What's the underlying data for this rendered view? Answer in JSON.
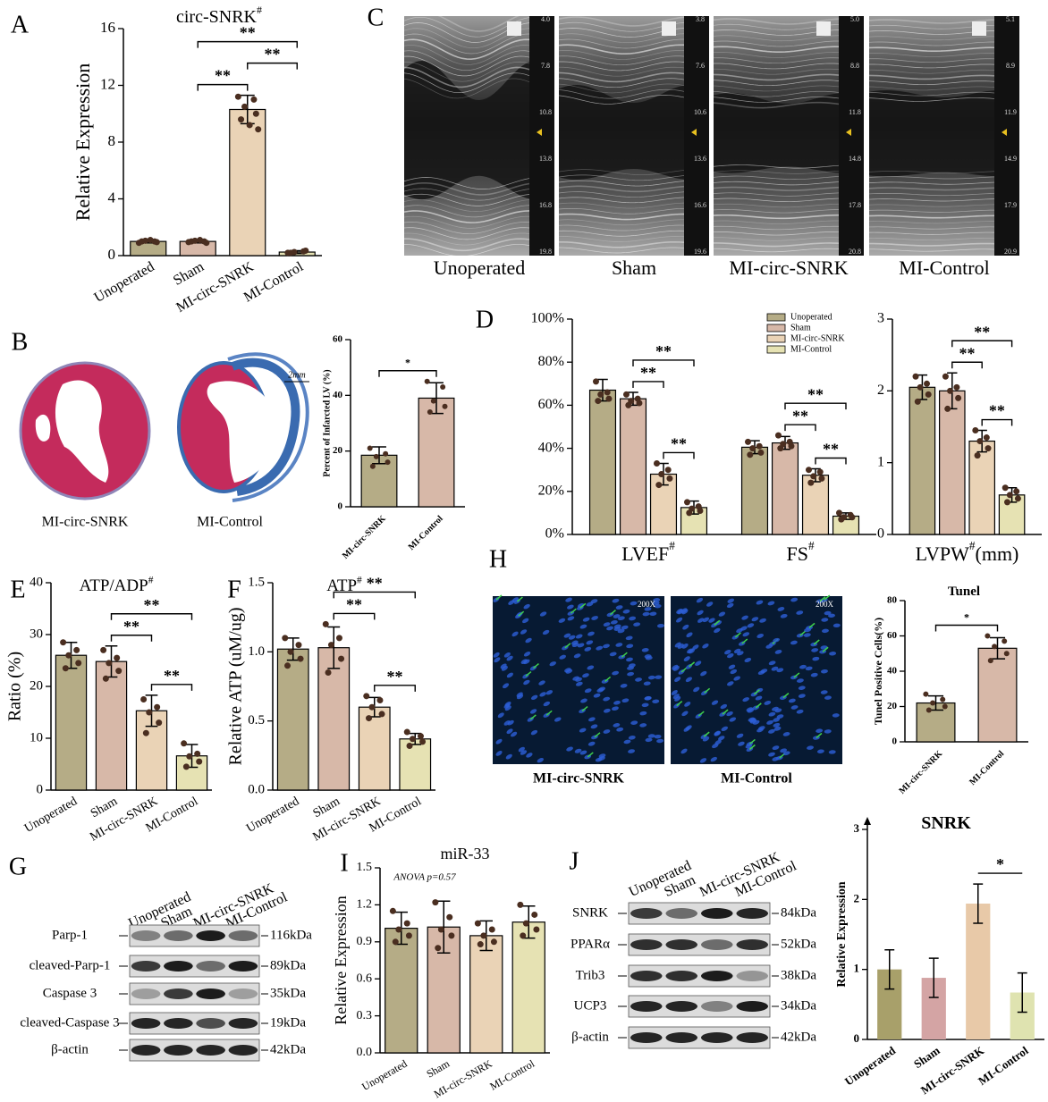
{
  "panels": [
    "A",
    "B",
    "C",
    "D",
    "E",
    "F",
    "G",
    "H",
    "I",
    "J"
  ],
  "histology": {
    "captions": [
      "MI-circ-SNRK",
      "MI-Control"
    ],
    "scale": "2mm"
  },
  "echo": {
    "images": [
      {
        "label": "Unoperated",
        "scale": [
          "4.0",
          "7.8",
          "10.8",
          "13.8",
          "16.8",
          "19.8"
        ]
      },
      {
        "label": "Sham",
        "scale": [
          "3.8",
          "7.6",
          "10.6",
          "13.6",
          "16.6",
          "19.6"
        ]
      },
      {
        "label": "MI-circ-SNRK",
        "scale": [
          "5.0",
          "8.8",
          "11.8",
          "14.8",
          "17.8",
          "20.8"
        ]
      },
      {
        "label": "MI-Control",
        "scale": [
          "5.1",
          "8.9",
          "11.9",
          "14.9",
          "17.9",
          "20.9"
        ]
      }
    ]
  },
  "tunel": {
    "captions": [
      "MI-circ-SNRK",
      "MI-Control"
    ],
    "magnification": "200X"
  },
  "blot_g": {
    "lanes": [
      "Unoperated",
      "Sham",
      "MI-circ-SNRK",
      "MI-Control"
    ],
    "rows": [
      {
        "protein": "Parp-1",
        "size": "116kDa"
      },
      {
        "protein": "cleaved-Parp-1",
        "size": "89kDa"
      },
      {
        "protein": "Caspase 3",
        "size": "35kDa"
      },
      {
        "protein": "cleaved-Caspase 3",
        "size": "19kDa"
      },
      {
        "protein": "β-actin",
        "size": "42kDa"
      }
    ]
  },
  "blot_j": {
    "lanes": [
      "Unoperated",
      "Sham",
      "MI-circ-SNRK",
      "MI-Control"
    ],
    "rows": [
      {
        "protein": "SNRK",
        "size": "84kDa"
      },
      {
        "protein": "PPARα",
        "size": "52kDa"
      },
      {
        "protein": "Trib3",
        "size": "38kDa"
      },
      {
        "protein": "UCP3",
        "size": "34kDa"
      },
      {
        "protein": "β-actin",
        "size": "42kDa"
      }
    ]
  },
  "chart_data": [
    {
      "type": "bar",
      "title": "circ-SNRK",
      "title_mark": "#",
      "ylabel": "Relative Expression",
      "categories": [
        "Unoperated",
        "Sham",
        "MI-circ-SNRK",
        "MI-Control"
      ],
      "colors": [
        "#b5ac86",
        "#d7b8a8",
        "#ead3b6",
        "#e6e2b3"
      ],
      "values": [
        1.0,
        1.0,
        10.3,
        0.25
      ],
      "errors": [
        0.1,
        0.1,
        1.0,
        0.1
      ],
      "points": [
        [
          0.9,
          1.0,
          1.05,
          0.95,
          1.0,
          1.1
        ],
        [
          0.95,
          1.0,
          1.05,
          0.9,
          1.0,
          1.1
        ],
        [
          11.2,
          11.0,
          10.5,
          10.0,
          9.6,
          9.2,
          8.9
        ],
        [
          0.2,
          0.3,
          0.25,
          0.35,
          0.2
        ]
      ],
      "ylim": [
        0,
        16
      ],
      "yticks": [
        0,
        4,
        8,
        12,
        16
      ],
      "annotations": [
        {
          "from": "Sham",
          "to": "MI-circ-SNRK",
          "label": "**"
        },
        {
          "from": "MI-circ-SNRK",
          "to": "MI-Control",
          "label": "**"
        },
        {
          "from": "Sham",
          "to": "MI-Control",
          "label": "**"
        }
      ]
    },
    {
      "type": "bar",
      "ylabel": "Percent of Infarcted LV (%)",
      "categories": [
        "MI-circ-SNRK",
        "MI-Control"
      ],
      "colors": [
        "#b5ac86",
        "#d7b8a8"
      ],
      "values": [
        18.5,
        39
      ],
      "errors": [
        3,
        5.5
      ],
      "points": [
        [
          21,
          19,
          18,
          16,
          14.5
        ],
        [
          45,
          43,
          38,
          36,
          34
        ]
      ],
      "ylim": [
        0,
        60
      ],
      "yticks": [
        0,
        20,
        40,
        60
      ],
      "annotations": [
        {
          "from": "MI-circ-SNRK",
          "to": "MI-Control",
          "label": "*"
        }
      ]
    },
    {
      "type": "grouped_bar",
      "categories": [
        "LVEF",
        "FS"
      ],
      "category_marks": [
        "#",
        "#"
      ],
      "legend": true,
      "series": [
        {
          "name": "Unoperated",
          "color": "#b5ac86",
          "values": [
            67,
            40.5
          ],
          "errors": [
            5,
            3
          ],
          "points": [
            [
              71,
              66,
              65,
              63,
              62
            ],
            [
              43,
              41,
              40,
              38,
              37
            ]
          ]
        },
        {
          "name": "Sham",
          "color": "#d7b8a8",
          "values": [
            63,
            42.5
          ],
          "errors": [
            3,
            3
          ],
          "points": [
            [
              65,
              63,
              62,
              61,
              60
            ],
            [
              46,
              43,
              42,
              41,
              40
            ]
          ]
        },
        {
          "name": "MI-circ-SNRK",
          "color": "#ead3b6",
          "values": [
            28,
            27.5
          ],
          "errors": [
            5,
            3
          ],
          "points": [
            [
              33,
              30,
              28,
              26,
              23
            ],
            [
              30,
              29,
              27,
              26,
              24
            ]
          ]
        },
        {
          "name": "MI-Control",
          "color": "#e6e2b3",
          "values": [
            12.5,
            8.5
          ],
          "errors": [
            3,
            1.5
          ],
          "points": [
            [
              15,
              13,
              12,
              11,
              10
            ],
            [
              10,
              9,
              8,
              8,
              7
            ]
          ]
        }
      ],
      "ylim": [
        0,
        100
      ],
      "yticks": [
        {
          "value": 0,
          "label": "0%"
        },
        {
          "value": 20,
          "label": "20%"
        },
        {
          "value": 40,
          "label": "40%"
        },
        {
          "value": 60,
          "label": "60%"
        },
        {
          "value": 80,
          "label": "80%"
        },
        {
          "value": 100,
          "label": "100%"
        }
      ],
      "annotations": [
        {
          "category": "LVEF",
          "from": "MI-circ-SNRK",
          "to": "MI-Control",
          "label": "**"
        },
        {
          "category": "LVEF",
          "from": "Sham",
          "to": "MI-circ-SNRK",
          "label": "**"
        },
        {
          "category": "LVEF",
          "from": "Sham",
          "to": "MI-Control",
          "label": "**"
        },
        {
          "category": "FS",
          "from": "MI-circ-SNRK",
          "to": "MI-Control",
          "label": "**"
        },
        {
          "category": "FS",
          "from": "Sham",
          "to": "MI-circ-SNRK",
          "label": "**"
        },
        {
          "category": "FS",
          "from": "Sham",
          "to": "MI-Control",
          "label": "**"
        }
      ]
    },
    {
      "type": "grouped_bar",
      "categories": [
        "LVPW"
      ],
      "category_marks": [
        "#"
      ],
      "category_unit": "(mm)",
      "series": [
        {
          "name": "Unoperated",
          "color": "#b5ac86",
          "values": [
            2.05
          ],
          "errors": [
            0.17
          ],
          "points": [
            [
              2.2,
              2.1,
              2.05,
              1.95,
              1.85
            ]
          ]
        },
        {
          "name": "Sham",
          "color": "#d7b8a8",
          "values": [
            2.0
          ],
          "errors": [
            0.25
          ],
          "points": [
            [
              2.2,
              2.05,
              2.0,
              1.9,
              1.75
            ]
          ]
        },
        {
          "name": "MI-circ-SNRK",
          "color": "#ead3b6",
          "values": [
            1.3
          ],
          "errors": [
            0.15
          ],
          "points": [
            [
              1.45,
              1.35,
              1.3,
              1.2,
              1.1
            ]
          ]
        },
        {
          "name": "MI-Control",
          "color": "#e6e2b3",
          "values": [
            0.55
          ],
          "errors": [
            0.1
          ],
          "points": [
            [
              0.65,
              0.6,
              0.55,
              0.5,
              0.45
            ]
          ]
        }
      ],
      "ylim": [
        0,
        3
      ],
      "yticks": [
        0,
        1,
        2,
        3
      ],
      "annotations": [
        {
          "category": "LVPW",
          "from": "MI-circ-SNRK",
          "to": "MI-Control",
          "label": "**"
        },
        {
          "category": "LVPW",
          "from": "Sham",
          "to": "MI-circ-SNRK",
          "label": "**"
        },
        {
          "category": "LVPW",
          "from": "Sham",
          "to": "MI-Control",
          "label": "**"
        }
      ]
    },
    {
      "type": "bar",
      "title": "ATP/ADP",
      "title_mark": "#",
      "ylabel": "Ratio (%)",
      "categories": [
        "Unoperated",
        "Sham",
        "MI-circ-SNRK",
        "MI-Control"
      ],
      "colors": [
        "#b5ac86",
        "#d7b8a8",
        "#ead3b6",
        "#e6e2b3"
      ],
      "values": [
        26,
        24.8,
        15.3,
        6.6
      ],
      "errors": [
        2.5,
        3,
        3,
        2.2
      ],
      "points": [
        [
          28.5,
          27,
          26,
          24.5,
          23.5
        ],
        [
          27,
          25.5,
          24.5,
          23,
          21.5
        ],
        [
          17.5,
          16,
          15,
          13,
          11
        ],
        [
          9,
          7,
          6.5,
          5.5,
          4.5
        ]
      ],
      "ylim": [
        0,
        40
      ],
      "yticks": [
        0,
        10,
        20,
        30,
        40
      ],
      "annotations": [
        {
          "from": "MI-circ-SNRK",
          "to": "MI-Control",
          "label": "**"
        },
        {
          "from": "Sham",
          "to": "MI-circ-SNRK",
          "label": "**"
        },
        {
          "from": "Sham",
          "to": "MI-Control",
          "label": "**"
        }
      ]
    },
    {
      "type": "bar",
      "title": "ATP",
      "title_mark": "#",
      "ylabel": "Relative ATP (uM/ug)",
      "categories": [
        "Unoperated",
        "Sham",
        "MI-circ-SNRK",
        "MI-Control"
      ],
      "colors": [
        "#b5ac86",
        "#d7b8a8",
        "#ead3b6",
        "#e6e2b3"
      ],
      "values": [
        1.02,
        1.03,
        0.6,
        0.37
      ],
      "errors": [
        0.08,
        0.15,
        0.07,
        0.04
      ],
      "points": [
        [
          1.1,
          1.05,
          1.0,
          0.95,
          0.9
        ],
        [
          1.2,
          1.1,
          1.05,
          0.95,
          0.85
        ],
        [
          0.68,
          0.65,
          0.6,
          0.55,
          0.52
        ],
        [
          0.42,
          0.39,
          0.37,
          0.35,
          0.32
        ]
      ],
      "ylim": [
        0,
        1.5
      ],
      "yticks": [
        {
          "value": 0,
          "label": "0.0"
        },
        0.5,
        {
          "value": 1,
          "label": "1.0"
        },
        1.5
      ],
      "annotations": [
        {
          "from": "MI-circ-SNRK",
          "to": "MI-Control",
          "label": "**"
        },
        {
          "from": "Sham",
          "to": "MI-circ-SNRK",
          "label": "**"
        },
        {
          "from": "Sham",
          "to": "MI-Control",
          "label": "**"
        }
      ]
    },
    {
      "type": "bar",
      "title": "Tunel",
      "ylabel": "Tunel Positive Cells(%)",
      "categories": [
        "MI-circ-SNRK",
        "MI-Control"
      ],
      "colors": [
        "#b5ac86",
        "#d7b8a8"
      ],
      "values": [
        22,
        53
      ],
      "errors": [
        4,
        6
      ],
      "points": [
        [
          27,
          24,
          22,
          20,
          18
        ],
        [
          60,
          57,
          54,
          50,
          46
        ]
      ],
      "ylim": [
        0,
        80
      ],
      "yticks": [
        0,
        20,
        40,
        60,
        80
      ],
      "annotations": [
        {
          "from": "MI-circ-SNRK",
          "to": "MI-Control",
          "label": "*"
        }
      ]
    },
    {
      "type": "bar",
      "title": "miR-33",
      "note": "ANOVA p=0.57",
      "ylabel": "Relative Expression",
      "categories": [
        "Unoperated",
        "Sham",
        "MI-circ-SNRK",
        "MI-Control"
      ],
      "colors": [
        "#b5ac86",
        "#d7b8a8",
        "#ead3b6",
        "#e6e2b3"
      ],
      "values": [
        1.01,
        1.02,
        0.95,
        1.06
      ],
      "errors": [
        0.13,
        0.21,
        0.12,
        0.13
      ],
      "points": [
        [
          1.15,
          1.05,
          1.0,
          0.95,
          0.9
        ],
        [
          1.22,
          1.1,
          1.0,
          0.95,
          0.85
        ],
        [
          1.05,
          1.0,
          0.95,
          0.9,
          0.88
        ],
        [
          1.2,
          1.12,
          1.05,
          1.0,
          0.95
        ]
      ],
      "ylim": [
        0,
        1.5
      ],
      "yticks": [
        {
          "value": 0,
          "label": "0.0"
        },
        0.3,
        0.6,
        0.9,
        1.2,
        1.5
      ]
    },
    {
      "type": "bar",
      "title": "SNRK",
      "ylabel": "Relative Expression",
      "categories": [
        "Unoperated",
        "Sham",
        "MI-circ-SNRK",
        "MI-Control"
      ],
      "colors": [
        "#a8a06a",
        "#d4a4a4",
        "#e8c9a8",
        "#dfe3b0"
      ],
      "values": [
        1.0,
        0.88,
        1.94,
        0.67
      ],
      "errors": [
        0.28,
        0.28,
        0.28,
        0.28
      ],
      "ylim": [
        0,
        3
      ],
      "yticks": [
        0,
        1,
        2,
        3
      ],
      "annotations": [
        {
          "from": "MI-circ-SNRK",
          "to": "MI-Control",
          "label": "*"
        }
      ]
    }
  ]
}
